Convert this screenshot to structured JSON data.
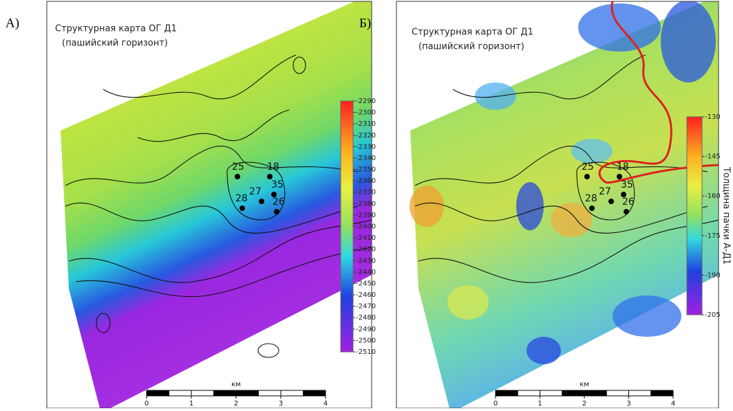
{
  "panels": [
    {
      "label": "А)",
      "title": [
        "Структурная карта ОГ Д1",
        "(пашийский горизонт)"
      ],
      "colorbar": {
        "ticks": [
          -2290,
          -2300,
          -2310,
          -2320,
          -2330,
          -2340,
          -2350,
          -2360,
          -2370,
          -2380,
          -2390,
          -2400,
          -2410,
          -2420,
          -2430,
          -2440,
          -2450,
          -2460,
          -2470,
          -2480,
          -2490,
          -2500,
          -2510
        ]
      },
      "wells": [
        "25",
        "18",
        "35",
        "27",
        "28",
        "26"
      ],
      "scale": {
        "unit": "км",
        "ticks": [
          0,
          1,
          2,
          3,
          4
        ]
      }
    },
    {
      "label": "Б)",
      "title": [
        "Структурная карта ОГ Д1",
        "(пашийский горизонт)"
      ],
      "colorbar": {
        "ticks": [
          -130,
          -145,
          -160,
          -175,
          -190,
          -205
        ],
        "label": "Толщина пачки А-Д1"
      },
      "wells": [
        "25",
        "18",
        "35",
        "27",
        "28",
        "26"
      ],
      "scale": {
        "unit": "км",
        "ticks": [
          0,
          1,
          2,
          3,
          4
        ]
      }
    }
  ]
}
